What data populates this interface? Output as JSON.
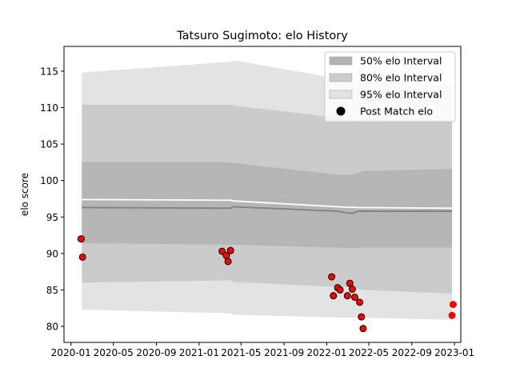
{
  "chart_data": {
    "type": "line",
    "title": "Tatsuro Sugimoto: elo History",
    "xlabel": "",
    "ylabel": "elo score",
    "xlim": [
      "2019-12-12",
      "2023-01-19"
    ],
    "ylim": [
      77.8,
      118.4
    ],
    "x_ticks": [
      "2020-01",
      "2020-05",
      "2020-09",
      "2021-01",
      "2021-05",
      "2021-09",
      "2022-01",
      "2022-05",
      "2022-09",
      "2023-01"
    ],
    "y_ticks": [
      80,
      85,
      90,
      95,
      100,
      105,
      110,
      115
    ],
    "grid": false,
    "legend_position": "top-right",
    "legend": [
      {
        "label": "50% elo Interval",
        "swatch": "#b3b3b3",
        "kind": "patch"
      },
      {
        "label": "80% elo Interval",
        "swatch": "#cccccc",
        "kind": "patch"
      },
      {
        "label": "95% elo Interval",
        "swatch": "#e3e3e3",
        "kind": "patch"
      },
      {
        "label": "Post Match elo",
        "swatch": "#000000",
        "kind": "marker"
      }
    ],
    "bands": {
      "x": [
        "2020-02-01",
        "2021-04-01",
        "2021-04-10",
        "2022-02-01",
        "2022-03-15",
        "2022-04-15",
        "2022-12-25"
      ],
      "p95_upper": [
        114.8,
        116.3,
        116.5,
        114.0,
        113.7,
        113.6,
        113.1
      ],
      "p80_upper": [
        110.4,
        110.4,
        110.3,
        108.6,
        108.3,
        108.4,
        108.2
      ],
      "p50_upper": [
        102.5,
        102.5,
        102.4,
        100.8,
        100.8,
        101.3,
        101.6
      ],
      "p50_lower": [
        91.4,
        91.2,
        91.2,
        90.8,
        90.7,
        90.8,
        90.8
      ],
      "p80_lower": [
        86.0,
        86.3,
        86.1,
        85.4,
        85.3,
        85.0,
        84.5
      ],
      "p95_lower": [
        82.3,
        81.8,
        81.6,
        81.2,
        81.2,
        81.2,
        80.9
      ]
    },
    "mean_line": {
      "x": [
        "2020-02-01",
        "2021-04-01",
        "2021-04-10",
        "2022-02-01",
        "2022-02-20",
        "2022-03-15",
        "2022-04-01",
        "2022-12-25"
      ],
      "y": [
        96.3,
        96.2,
        96.4,
        95.8,
        95.6,
        95.5,
        95.8,
        95.8
      ],
      "color": "#808080"
    },
    "expected_line": {
      "x": [
        "2020-02-01",
        "2021-04-01",
        "2021-04-10",
        "2022-02-01",
        "2022-04-01",
        "2022-12-25"
      ],
      "y": [
        97.4,
        97.3,
        97.2,
        96.4,
        96.3,
        96.2
      ],
      "color": "#ffffff"
    },
    "series": [
      {
        "name": "Post Match elo",
        "color": "#ff0000",
        "edge": "#000000",
        "points": [
          {
            "x": "2020-01-30",
            "y": 92.0
          },
          {
            "x": "2020-02-03",
            "y": 89.5
          },
          {
            "x": "2021-03-08",
            "y": 90.3
          },
          {
            "x": "2021-03-20",
            "y": 89.7
          },
          {
            "x": "2021-03-25",
            "y": 88.9
          },
          {
            "x": "2021-04-01",
            "y": 90.4
          },
          {
            "x": "2022-01-15",
            "y": 86.8
          },
          {
            "x": "2022-01-20",
            "y": 84.2
          },
          {
            "x": "2022-02-01",
            "y": 85.3
          },
          {
            "x": "2022-02-08",
            "y": 85.0
          },
          {
            "x": "2022-03-01",
            "y": 84.2
          },
          {
            "x": "2022-03-08",
            "y": 85.9
          },
          {
            "x": "2022-03-15",
            "y": 85.1
          },
          {
            "x": "2022-03-22",
            "y": 84.0
          },
          {
            "x": "2022-04-05",
            "y": 83.3
          },
          {
            "x": "2022-04-10",
            "y": 81.3
          },
          {
            "x": "2022-04-15",
            "y": 79.7
          }
        ]
      },
      {
        "name": "",
        "color": "#ff0000",
        "edge": "#ff0000",
        "points": [
          {
            "x": "2022-12-25",
            "y": 81.5
          },
          {
            "x": "2022-12-28",
            "y": 83.0
          }
        ]
      }
    ]
  }
}
